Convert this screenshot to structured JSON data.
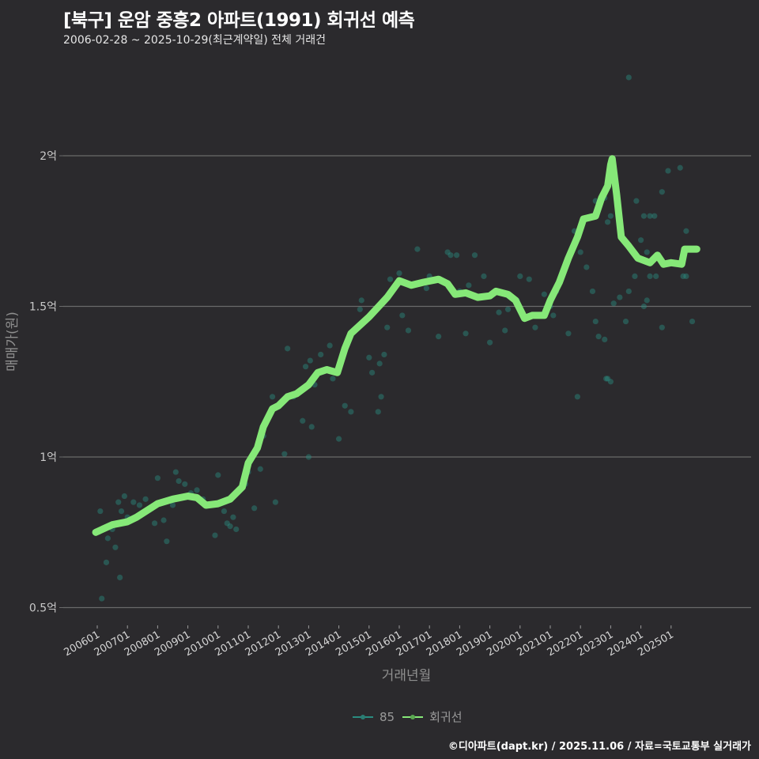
{
  "header": {
    "title": "[북구] 운암 중흥2 아파트(1991) 회귀선 예측",
    "subtitle": "2006-02-28 ~ 2025-10-29(최근계약일) 전체 거래건"
  },
  "legend": {
    "items": [
      {
        "label": "85",
        "color": "#2a8c80"
      },
      {
        "label": "회귀선",
        "color": "#86e878"
      }
    ]
  },
  "caption": "©디아파트(dapt.kr) / 2025.11.06 / 자료=국토교통부 실거래가",
  "colors": {
    "background": "#2b2a2d",
    "grid": "#6a6a6a",
    "scatter": "#2a8c80",
    "regression": "#86e878"
  },
  "chart_data": {
    "type": "scatter",
    "title": "[북구] 운암 중흥2 아파트(1991) 회귀선 예측",
    "subtitle": "2006-02-28 ~ 2025-10-29(최근계약일) 전체 거래건",
    "xlabel": "거래년월",
    "ylabel": "매매가(원)",
    "ylim": [
      0.45,
      2.3
    ],
    "y_unit": "억",
    "yticks": [
      {
        "value": 0.5,
        "label": "0.5억"
      },
      {
        "value": 1.0,
        "label": "1억"
      },
      {
        "value": 1.5,
        "label": "1.5억"
      },
      {
        "value": 2.0,
        "label": "2억"
      }
    ],
    "xticks": [
      "200601",
      "200701",
      "200801",
      "200901",
      "201001",
      "201101",
      "201201",
      "201301",
      "201401",
      "201501",
      "201601",
      "201701",
      "201801",
      "201901",
      "202001",
      "202101",
      "202201",
      "202301",
      "202401",
      "202501"
    ],
    "grid": true,
    "legend_position": "bottom",
    "series": [
      {
        "name": "85",
        "type": "scatter",
        "points": [
          [
            2006.1,
            0.82
          ],
          [
            2006.15,
            0.53
          ],
          [
            2006.3,
            0.65
          ],
          [
            2006.35,
            0.73
          ],
          [
            2006.5,
            0.76
          ],
          [
            2006.6,
            0.7
          ],
          [
            2006.7,
            0.85
          ],
          [
            2006.75,
            0.6
          ],
          [
            2006.8,
            0.82
          ],
          [
            2006.9,
            0.87
          ],
          [
            2007.0,
            0.8
          ],
          [
            2007.1,
            0.79
          ],
          [
            2007.2,
            0.85
          ],
          [
            2007.4,
            0.84
          ],
          [
            2007.6,
            0.86
          ],
          [
            2007.9,
            0.78
          ],
          [
            2008.0,
            0.93
          ],
          [
            2008.2,
            0.79
          ],
          [
            2008.3,
            0.72
          ],
          [
            2008.5,
            0.84
          ],
          [
            2008.6,
            0.95
          ],
          [
            2008.7,
            0.92
          ],
          [
            2008.9,
            0.91
          ],
          [
            2009.1,
            0.88
          ],
          [
            2009.3,
            0.89
          ],
          [
            2009.5,
            0.86
          ],
          [
            2009.7,
            0.84
          ],
          [
            2009.9,
            0.74
          ],
          [
            2010.0,
            0.94
          ],
          [
            2010.2,
            0.82
          ],
          [
            2010.3,
            0.78
          ],
          [
            2010.4,
            0.77
          ],
          [
            2010.5,
            0.8
          ],
          [
            2010.6,
            0.76
          ],
          [
            2010.7,
            0.89
          ],
          [
            2010.9,
            0.91
          ],
          [
            2011.0,
            0.95
          ],
          [
            2011.2,
            0.83
          ],
          [
            2011.4,
            0.96
          ],
          [
            2011.5,
            1.07
          ],
          [
            2011.8,
            1.2
          ],
          [
            2011.9,
            0.85
          ],
          [
            2012.2,
            1.01
          ],
          [
            2012.3,
            1.36
          ],
          [
            2012.5,
            1.2
          ],
          [
            2012.8,
            1.12
          ],
          [
            2012.9,
            1.3
          ],
          [
            2013.0,
            1.0
          ],
          [
            2013.05,
            1.32
          ],
          [
            2013.1,
            1.1
          ],
          [
            2013.2,
            1.24
          ],
          [
            2013.4,
            1.34
          ],
          [
            2013.7,
            1.37
          ],
          [
            2013.8,
            1.26
          ],
          [
            2014.0,
            1.06
          ],
          [
            2014.2,
            1.17
          ],
          [
            2014.4,
            1.15
          ],
          [
            2014.7,
            1.49
          ],
          [
            2014.75,
            1.52
          ],
          [
            2015.0,
            1.33
          ],
          [
            2015.1,
            1.28
          ],
          [
            2015.3,
            1.15
          ],
          [
            2015.35,
            1.31
          ],
          [
            2015.4,
            1.2
          ],
          [
            2015.5,
            1.34
          ],
          [
            2015.6,
            1.43
          ],
          [
            2015.7,
            1.59
          ],
          [
            2015.9,
            1.57
          ],
          [
            2016.0,
            1.61
          ],
          [
            2016.1,
            1.47
          ],
          [
            2016.3,
            1.42
          ],
          [
            2016.6,
            1.69
          ],
          [
            2016.9,
            1.56
          ],
          [
            2017.0,
            1.6
          ],
          [
            2017.3,
            1.4
          ],
          [
            2017.6,
            1.68
          ],
          [
            2017.7,
            1.67
          ],
          [
            2017.9,
            1.67
          ],
          [
            2018.0,
            1.55
          ],
          [
            2018.2,
            1.41
          ],
          [
            2018.3,
            1.57
          ],
          [
            2018.5,
            1.67
          ],
          [
            2018.8,
            1.6
          ],
          [
            2019.0,
            1.38
          ],
          [
            2019.3,
            1.48
          ],
          [
            2019.5,
            1.42
          ],
          [
            2019.6,
            1.49
          ],
          [
            2019.9,
            1.52
          ],
          [
            2020.0,
            1.6
          ],
          [
            2020.3,
            1.59
          ],
          [
            2020.5,
            1.43
          ],
          [
            2020.8,
            1.54
          ],
          [
            2021.0,
            1.5
          ],
          [
            2021.1,
            1.47
          ],
          [
            2021.2,
            1.55
          ],
          [
            2021.4,
            1.6
          ],
          [
            2021.6,
            1.41
          ],
          [
            2021.8,
            1.75
          ],
          [
            2021.9,
            1.2
          ],
          [
            2022.0,
            1.68
          ],
          [
            2022.2,
            1.63
          ],
          [
            2022.4,
            1.55
          ],
          [
            2022.5,
            1.45
          ],
          [
            2022.6,
            1.4
          ],
          [
            2022.8,
            1.39
          ],
          [
            2022.85,
            1.26
          ],
          [
            2022.9,
            1.26
          ],
          [
            2023.0,
            1.25
          ],
          [
            2023.1,
            1.51
          ],
          [
            2023.3,
            1.53
          ],
          [
            2023.5,
            1.45
          ],
          [
            2023.6,
            1.55
          ],
          [
            2023.8,
            1.6
          ],
          [
            2024.0,
            1.72
          ],
          [
            2024.2,
            1.68
          ],
          [
            2024.3,
            1.8
          ],
          [
            2024.45,
            1.8
          ],
          [
            2024.7,
            1.88
          ],
          [
            2024.9,
            1.95
          ],
          [
            2025.3,
            1.96
          ],
          [
            2025.5,
            1.75
          ],
          [
            2025.5,
            1.6
          ],
          [
            2025.7,
            1.45
          ],
          [
            2022.5,
            1.85
          ],
          [
            2022.6,
            1.83
          ],
          [
            2022.8,
            1.86
          ],
          [
            2022.9,
            1.78
          ],
          [
            2023.0,
            1.8
          ],
          [
            2023.6,
            2.26
          ],
          [
            2023.85,
            1.85
          ],
          [
            2024.1,
            1.8
          ],
          [
            2024.1,
            1.5
          ],
          [
            2024.2,
            1.52
          ],
          [
            2024.5,
            1.6
          ],
          [
            2024.7,
            1.43
          ],
          [
            2024.3,
            1.6
          ],
          [
            2025.4,
            1.6
          ]
        ]
      },
      {
        "name": "회귀선",
        "type": "line",
        "points": [
          [
            2005.95,
            0.75
          ],
          [
            2006.5,
            0.775
          ],
          [
            2007.0,
            0.785
          ],
          [
            2007.3,
            0.8
          ],
          [
            2008.0,
            0.845
          ],
          [
            2008.5,
            0.86
          ],
          [
            2009.0,
            0.87
          ],
          [
            2009.3,
            0.865
          ],
          [
            2009.6,
            0.84
          ],
          [
            2010.0,
            0.845
          ],
          [
            2010.4,
            0.86
          ],
          [
            2010.8,
            0.9
          ],
          [
            2011.0,
            0.98
          ],
          [
            2011.3,
            1.03
          ],
          [
            2011.5,
            1.1
          ],
          [
            2011.8,
            1.16
          ],
          [
            2012.0,
            1.17
          ],
          [
            2012.3,
            1.2
          ],
          [
            2012.6,
            1.21
          ],
          [
            2013.0,
            1.24
          ],
          [
            2013.3,
            1.28
          ],
          [
            2013.6,
            1.29
          ],
          [
            2013.95,
            1.28
          ],
          [
            2014.2,
            1.36
          ],
          [
            2014.4,
            1.41
          ],
          [
            2015.0,
            1.465
          ],
          [
            2015.6,
            1.53
          ],
          [
            2016.0,
            1.585
          ],
          [
            2016.4,
            1.57
          ],
          [
            2016.8,
            1.58
          ],
          [
            2017.3,
            1.59
          ],
          [
            2017.6,
            1.575
          ],
          [
            2017.85,
            1.54
          ],
          [
            2018.2,
            1.545
          ],
          [
            2018.6,
            1.53
          ],
          [
            2019.0,
            1.535
          ],
          [
            2019.2,
            1.55
          ],
          [
            2019.6,
            1.54
          ],
          [
            2019.85,
            1.52
          ],
          [
            2020.15,
            1.46
          ],
          [
            2020.4,
            1.47
          ],
          [
            2020.8,
            1.47
          ],
          [
            2021.0,
            1.52
          ],
          [
            2021.3,
            1.58
          ],
          [
            2021.6,
            1.66
          ],
          [
            2021.9,
            1.73
          ],
          [
            2022.1,
            1.79
          ],
          [
            2022.5,
            1.8
          ],
          [
            2022.7,
            1.86
          ],
          [
            2022.9,
            1.9
          ],
          [
            2023.0,
            1.97
          ],
          [
            2023.05,
            1.99
          ],
          [
            2023.2,
            1.87
          ],
          [
            2023.35,
            1.73
          ],
          [
            2023.6,
            1.7
          ],
          [
            2023.9,
            1.66
          ],
          [
            2024.3,
            1.645
          ],
          [
            2024.55,
            1.67
          ],
          [
            2024.75,
            1.64
          ],
          [
            2025.0,
            1.645
          ],
          [
            2025.35,
            1.64
          ],
          [
            2025.45,
            1.69
          ],
          [
            2025.85,
            1.69
          ]
        ]
      }
    ]
  }
}
